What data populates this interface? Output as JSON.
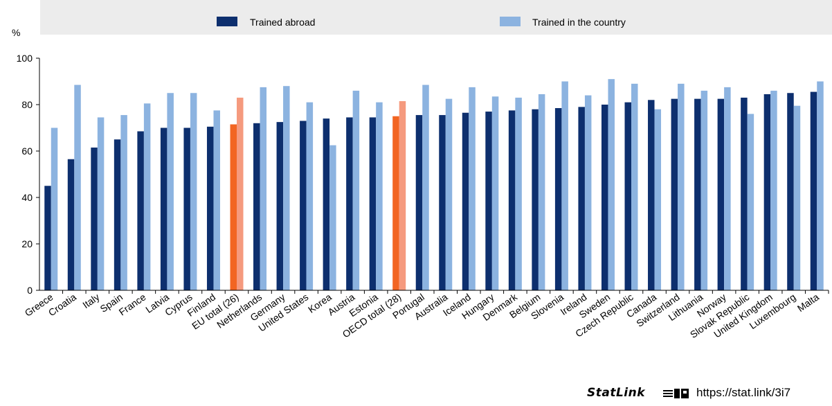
{
  "chart_data": {
    "type": "bar",
    "ylabel": "%",
    "ylim": [
      0,
      100
    ],
    "yticks": [
      0,
      20,
      40,
      60,
      80,
      100
    ],
    "grid": false,
    "legend_position": "top",
    "categories": [
      "Greece",
      "Croatia",
      "Italy",
      "Spain",
      "France",
      "Latvia",
      "Cyprus",
      "Finland",
      "EU total (26)",
      "Netherlands",
      "Germany",
      "United States",
      "Korea",
      "Austria",
      "Estonia",
      "OECD total (28)",
      "Portugal",
      "Australia",
      "Iceland",
      "Hungary",
      "Denmark",
      "Belgium",
      "Slovenia",
      "Ireland",
      "Sweden",
      "Czech Republic",
      "Canada",
      "Switzerland",
      "Lithuania",
      "Norway",
      "Slovak Republic",
      "United Kingdom",
      "Luxembourg",
      "Malta"
    ],
    "highlight_categories": [
      "EU total (26)",
      "OECD total (28)"
    ],
    "series": [
      {
        "name": "Trained abroad",
        "color": "#0d2f6e",
        "highlight_color": "#f26522",
        "values": [
          45,
          56.5,
          61.5,
          65,
          68.5,
          70,
          70,
          70.5,
          71.5,
          72,
          72.5,
          73,
          74,
          74.5,
          74.5,
          75,
          75.5,
          75.5,
          76.5,
          77,
          77.5,
          78,
          78.5,
          79,
          80,
          81,
          82,
          82.5,
          82.5,
          82.5,
          83,
          84.5,
          85,
          85.5
        ]
      },
      {
        "name": "Trained in the country",
        "color": "#8cb3e0",
        "highlight_color": "#f59a7e",
        "values": [
          70,
          88.5,
          74.5,
          75.5,
          80.5,
          85,
          85,
          77.5,
          83,
          87.5,
          88,
          81,
          62.5,
          86,
          81,
          81.5,
          88.5,
          82.5,
          87.5,
          83.5,
          83,
          84.5,
          90,
          84,
          91,
          89,
          78,
          89,
          86,
          87.5,
          76,
          86,
          79.5,
          90
        ]
      }
    ]
  },
  "statlink": {
    "word": "StatLink",
    "url": "https://stat.link/3i7"
  }
}
